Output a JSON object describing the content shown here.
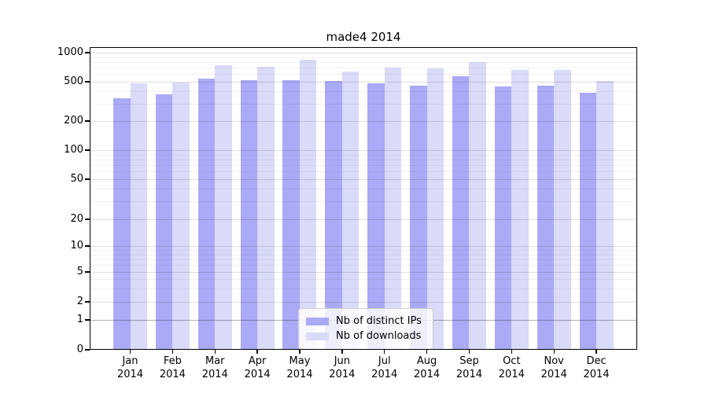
{
  "title": "made4 2014",
  "legend": {
    "items": [
      {
        "label": "Nb of distinct IPs",
        "color": "#abaaf6"
      },
      {
        "label": "Nb of downloads",
        "color": "#dadaf9"
      }
    ],
    "position": "lower center"
  },
  "chart_data": {
    "type": "bar",
    "title": "made4 2014",
    "categories": [
      "Jan",
      "Feb",
      "Mar",
      "Apr",
      "May",
      "Jun",
      "Jul",
      "Aug",
      "Sep",
      "Oct",
      "Nov",
      "Dec"
    ],
    "year": "2014",
    "series": [
      {
        "name": "Nb of distinct IPs",
        "color": "#abaaf6",
        "values": [
          340,
          370,
          540,
          515,
          515,
          510,
          480,
          455,
          565,
          450,
          460,
          385
        ]
      },
      {
        "name": "Nb of downloads",
        "color": "#dadaf9",
        "values": [
          485,
          490,
          745,
          710,
          840,
          640,
          700,
          690,
          800,
          660,
          660,
          510
        ]
      }
    ],
    "xlabel": "",
    "ylabel": "",
    "yticks": [
      0,
      1,
      2,
      5,
      10,
      20,
      50,
      100,
      200,
      500,
      1000
    ],
    "ylim": [
      0,
      1000
    ],
    "scale": "log-like (symlog, linear below 1)",
    "grid": "horizontal major + minor gridlines, drawn over bars",
    "legend_position": "lower center",
    "bar_group": "paired bars per month: distinct IPs (left, darker), downloads (right, lighter)"
  }
}
